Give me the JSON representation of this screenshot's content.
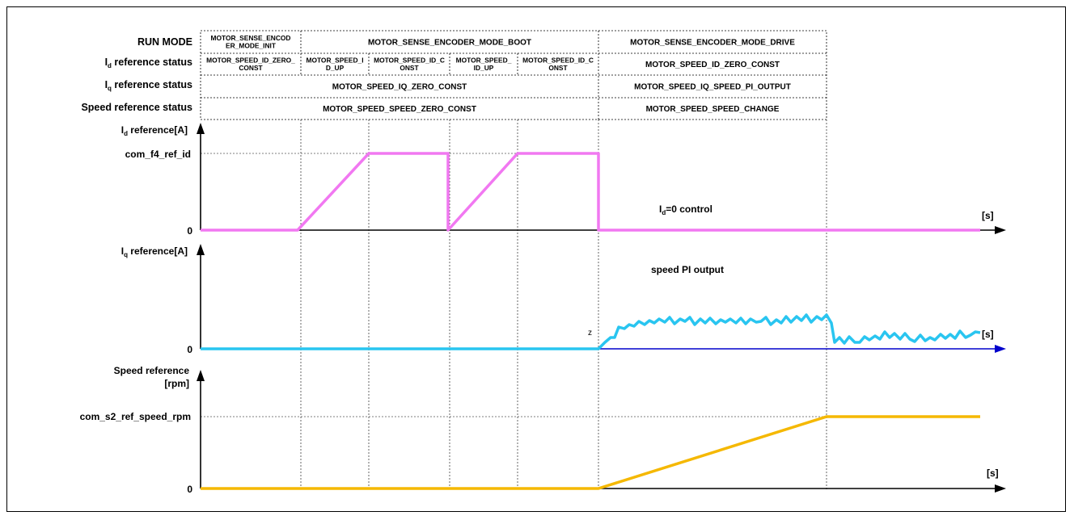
{
  "row_labels": {
    "run_mode": "RUN MODE",
    "id_status": {
      "main": "I",
      "sub": "d",
      "rest": " reference status"
    },
    "iq_status": {
      "main": "I",
      "sub": "q",
      "rest": " reference status"
    },
    "speed_status": "Speed reference status"
  },
  "run_mode_cells": [
    {
      "lines": [
        "MOTOR_SENSE_ENCOD",
        "ER_MODE_INIT"
      ]
    },
    {
      "lines": [
        "MOTOR_SENSE_ENCODER_MODE_BOOT"
      ]
    },
    {
      "lines": [
        "MOTOR_SENSE_ENCODER_MODE_DRIVE"
      ]
    }
  ],
  "id_status_cells": [
    {
      "lines": [
        "MOTOR_SPEED_ID_ZERO_",
        "CONST"
      ]
    },
    {
      "lines": [
        "MOTOR_SPEED_I",
        "D_UP"
      ]
    },
    {
      "lines": [
        "MOTOR_SPEED_ID_C",
        "ONST"
      ]
    },
    {
      "lines": [
        "MOTOR_SPEED_",
        "ID_UP"
      ]
    },
    {
      "lines": [
        "MOTOR_SPEED_ID_C",
        "ONST"
      ]
    },
    {
      "lines": [
        "MOTOR_SPEED_ID_ZERO_CONST"
      ]
    }
  ],
  "iq_status_cells": [
    {
      "lines": [
        "MOTOR_SPEED_IQ_ZERO_CONST"
      ]
    },
    {
      "lines": [
        "MOTOR_SPEED_IQ_SPEED_PI_OUTPUT"
      ]
    }
  ],
  "speed_status_cells": [
    {
      "lines": [
        "MOTOR_SPEED_SPEED_ZERO_CONST"
      ]
    },
    {
      "lines": [
        "MOTOR_SPEED_SPEED_CHANGE"
      ]
    }
  ],
  "id_plot": {
    "axis_label": {
      "main": "I",
      "sub": "d",
      "rest": " reference[A]"
    },
    "level_label": "com_f4_ref_id",
    "zero_label": "0",
    "unit_label": "[s]",
    "annotation": {
      "main": "I",
      "sub": "d",
      "rest": "=0 control"
    },
    "color": "#f178f1"
  },
  "iq_plot": {
    "axis_label": {
      "main": "I",
      "sub": "q",
      "rest": " reference[A]"
    },
    "zero_label": "0",
    "unit_label": "[s]",
    "annotation": "speed PI output",
    "z_mark": "z",
    "color": "#29c5f0",
    "axis_color": "#0000cc"
  },
  "speed_plot": {
    "axis_label_lines": [
      "Speed reference",
      "[rpm]"
    ],
    "level_label": "com_s2_ref_speed_rpm",
    "zero_label": "0",
    "unit_label": "[s]",
    "color": "#f5b800"
  }
}
